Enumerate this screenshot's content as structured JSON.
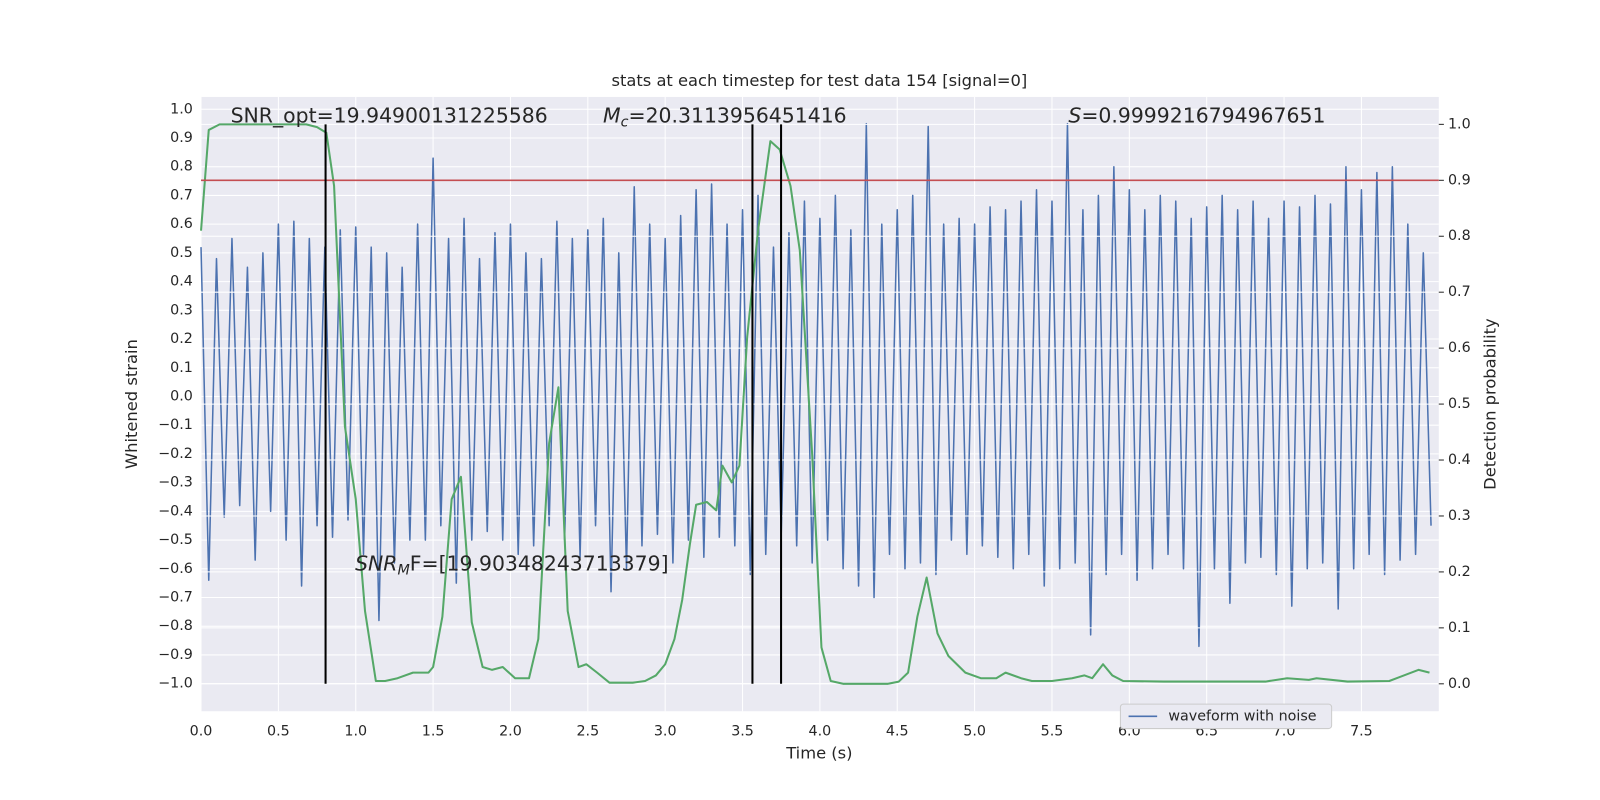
{
  "chart_data": {
    "type": "line",
    "title": "stats at each timestep for test data 154 [signal=0]",
    "xlabel": "Time (s)",
    "ylabel": "Whitened strain",
    "y2label": "Detection probability",
    "xlim": [
      0,
      8
    ],
    "ylim": [
      -1.096,
      1.043
    ],
    "y2lim": [
      -0.049,
      1.049
    ],
    "xticks": [
      {
        "value": 0,
        "label": "0.0"
      },
      0.5,
      {
        "value": 1,
        "label": "1.0"
      },
      1.5,
      {
        "value": 2,
        "label": "2.0"
      },
      2.5,
      {
        "value": 3,
        "label": "3.0"
      },
      3.5,
      {
        "value": 4,
        "label": "4.0"
      },
      4.5,
      {
        "value": 5,
        "label": "5.0"
      },
      5.5,
      {
        "value": 6,
        "label": "6.0"
      },
      6.5,
      {
        "value": 7,
        "label": "7.0"
      },
      7.5
    ],
    "yticks": [
      {
        "value": -1,
        "label": "−1.0"
      },
      {
        "value": -0.9,
        "label": "−0.9"
      },
      {
        "value": -0.8,
        "label": "−0.8"
      },
      {
        "value": -0.7,
        "label": "−0.7"
      },
      {
        "value": -0.6,
        "label": "−0.6"
      },
      {
        "value": -0.5,
        "label": "−0.5"
      },
      {
        "value": -0.4,
        "label": "−0.4"
      },
      {
        "value": -0.3,
        "label": "−0.3"
      },
      {
        "value": -0.2,
        "label": "−0.2"
      },
      {
        "value": -0.1,
        "label": "−0.1"
      },
      {
        "value": 0,
        "label": "0.0"
      },
      0.1,
      0.2,
      0.3,
      0.4,
      0.5,
      0.6,
      0.7,
      0.8,
      0.9,
      {
        "value": 1,
        "label": "1.0"
      }
    ],
    "y2ticks": [
      {
        "value": 0,
        "label": "0.0"
      },
      0.1,
      0.2,
      0.3,
      0.4,
      0.5,
      0.6,
      0.7,
      0.8,
      0.9,
      {
        "value": 1,
        "label": "1.0"
      }
    ],
    "grid": true,
    "legend": "lower right",
    "series": [
      {
        "name": "waveform with noise",
        "color": "#4c72b0",
        "x": [
          0,
          0.05,
          0.1,
          0.15,
          0.2,
          0.25,
          0.3,
          0.35,
          0.4,
          0.45,
          0.5,
          0.55,
          0.6,
          0.65,
          0.7,
          0.75,
          0.8,
          0.85,
          0.9,
          0.95,
          1,
          1.05,
          1.1,
          1.15,
          1.2,
          1.25,
          1.3,
          1.35,
          1.4,
          1.45,
          1.5,
          1.55,
          1.6,
          1.65,
          1.7,
          1.75,
          1.8,
          1.85,
          1.9,
          1.95,
          2,
          2.05,
          2.1,
          2.15,
          2.2,
          2.25,
          2.3,
          2.35,
          2.4,
          2.45,
          2.5,
          2.55,
          2.6,
          2.65,
          2.7,
          2.75,
          2.8,
          2.85,
          2.9,
          2.95,
          3,
          3.05,
          3.1,
          3.15,
          3.2,
          3.25,
          3.3,
          3.35,
          3.4,
          3.45,
          3.5,
          3.55,
          3.6,
          3.65,
          3.7,
          3.75,
          3.8,
          3.85,
          3.9,
          3.95,
          4,
          4.05,
          4.1,
          4.15,
          4.2,
          4.25,
          4.3,
          4.35,
          4.4,
          4.45,
          4.5,
          4.55,
          4.6,
          4.65,
          4.7,
          4.75,
          4.8,
          4.85,
          4.9,
          4.95,
          5,
          5.05,
          5.1,
          5.15,
          5.2,
          5.25,
          5.3,
          5.35,
          5.4,
          5.45,
          5.5,
          5.55,
          5.6,
          5.65,
          5.7,
          5.75,
          5.8,
          5.85,
          5.9,
          5.95,
          6,
          6.05,
          6.1,
          6.15,
          6.2,
          6.25,
          6.3,
          6.35,
          6.4,
          6.45,
          6.5,
          6.55,
          6.6,
          6.65,
          6.7,
          6.75,
          6.8,
          6.85,
          6.9,
          6.95,
          7,
          7.05,
          7.1,
          7.15,
          7.2,
          7.25,
          7.3,
          7.35,
          7.4,
          7.45,
          7.5,
          7.55,
          7.6,
          7.65,
          7.7,
          7.75,
          7.8,
          7.85,
          7.9,
          7.95
        ],
        "values": [
          0.52,
          -0.64,
          0.48,
          -0.42,
          0.55,
          -0.38,
          0.45,
          -0.57,
          0.5,
          -0.4,
          0.6,
          -0.5,
          0.61,
          -0.66,
          0.55,
          -0.45,
          0.52,
          -0.49,
          0.58,
          -0.43,
          0.59,
          -0.55,
          0.52,
          -0.78,
          0.5,
          -0.58,
          0.45,
          -0.5,
          0.6,
          -0.5,
          0.83,
          -0.45,
          0.55,
          -0.65,
          0.62,
          -0.5,
          0.48,
          -0.47,
          0.57,
          -0.5,
          0.6,
          -0.55,
          0.5,
          -0.52,
          0.48,
          -0.45,
          0.61,
          -0.5,
          0.55,
          -0.56,
          0.58,
          -0.45,
          0.62,
          -0.68,
          0.5,
          -0.6,
          0.73,
          -0.52,
          0.6,
          -0.48,
          0.55,
          -0.58,
          0.63,
          -0.5,
          0.72,
          -0.56,
          0.74,
          -0.49,
          0.6,
          -0.52,
          0.65,
          -0.62,
          0.7,
          -0.55,
          0.52,
          -0.48,
          0.57,
          -0.52,
          0.68,
          -0.58,
          0.62,
          -0.5,
          0.7,
          -0.6,
          0.58,
          -0.66,
          0.95,
          -0.7,
          0.6,
          -0.55,
          0.65,
          -0.6,
          0.7,
          -0.58,
          0.94,
          -0.62,
          0.6,
          -0.5,
          0.62,
          -0.55,
          0.6,
          -0.52,
          0.66,
          -0.56,
          0.65,
          -0.6,
          0.68,
          -0.55,
          0.72,
          -0.66,
          0.68,
          -0.6,
          0.95,
          -0.58,
          0.65,
          -0.83,
          0.7,
          -0.62,
          0.8,
          -0.55,
          0.72,
          -0.64,
          0.65,
          -0.6,
          0.7,
          -0.55,
          0.68,
          -0.6,
          0.62,
          -0.87,
          0.66,
          -0.6,
          0.7,
          -0.72,
          0.65,
          -0.58,
          0.68,
          -0.56,
          0.62,
          -0.62,
          0.68,
          -0.73,
          0.66,
          -0.6,
          0.7,
          -0.58,
          0.67,
          -0.74,
          0.8,
          -0.6,
          0.72,
          -0.55,
          0.78,
          -0.62,
          0.8,
          -0.57,
          0.6,
          -0.55,
          0.5,
          -0.45
        ]
      },
      {
        "color": "#55a868",
        "axis": "y2",
        "x": [
          0,
          0.05,
          0.12,
          0.28,
          0.68,
          0.75,
          0.81,
          0.86,
          0.93,
          1,
          1.06,
          1.13,
          1.19,
          1.27,
          1.37,
          1.47,
          1.5,
          1.56,
          1.62,
          1.68,
          1.75,
          1.82,
          1.88,
          1.95,
          2.03,
          2.12,
          2.18,
          2.25,
          2.31,
          2.37,
          2.44,
          2.49,
          2.56,
          2.64,
          2.79,
          2.87,
          2.94,
          3,
          3.06,
          3.11,
          3.16,
          3.2,
          3.27,
          3.33,
          3.37,
          3.43,
          3.48,
          3.53,
          3.6,
          3.68,
          3.74,
          3.81,
          3.87,
          3.95,
          4.01,
          4.07,
          4.15,
          4.44,
          4.51,
          4.57,
          4.63,
          4.69,
          4.76,
          4.83,
          4.94,
          5.04,
          5.14,
          5.2,
          5.3,
          5.37,
          5.5,
          5.63,
          5.71,
          5.76,
          5.83,
          5.89,
          5.96,
          6.22,
          6.55,
          6.88,
          7.02,
          7.16,
          7.21,
          7.41,
          7.68,
          7.87,
          7.94
        ],
        "values": [
          0.81,
          0.99,
          1,
          1,
          1,
          0.995,
          0.985,
          0.89,
          0.46,
          0.33,
          0.13,
          0.005,
          0.005,
          0.01,
          0.02,
          0.02,
          0.03,
          0.12,
          0.33,
          0.37,
          0.11,
          0.03,
          0.025,
          0.03,
          0.01,
          0.01,
          0.08,
          0.43,
          0.53,
          0.13,
          0.03,
          0.035,
          0.02,
          0.002,
          0.002,
          0.005,
          0.015,
          0.035,
          0.08,
          0.15,
          0.25,
          0.32,
          0.325,
          0.31,
          0.39,
          0.36,
          0.39,
          0.62,
          0.81,
          0.97,
          0.955,
          0.89,
          0.775,
          0.41,
          0.065,
          0.005,
          0,
          0,
          0.004,
          0.02,
          0.12,
          0.19,
          0.09,
          0.05,
          0.02,
          0.01,
          0.01,
          0.02,
          0.01,
          0.005,
          0.005,
          0.01,
          0.015,
          0.01,
          0.035,
          0.015,
          0.005,
          0.004,
          0.004,
          0.004,
          0.01,
          0.007,
          0.01,
          0.004,
          0.005,
          0.025,
          0.02
        ]
      }
    ],
    "hlines": [
      {
        "y": 0.9,
        "axis": "y2",
        "color": "#c44e52"
      }
    ],
    "vlines": {
      "x": [
        0.805,
        3.564,
        3.749
      ],
      "ymin": 0,
      "ymax": 1,
      "axis": "y2",
      "color": "#000000"
    },
    "annotations": [
      {
        "text": "SNR_opt=19.94900131225586"
      },
      {
        "symbol": "M",
        "subscript": "c",
        "text": "=20.3113956451416"
      },
      {
        "symbol": "S",
        "text": "=0.9999216794967651"
      },
      {
        "symbol": "SNR",
        "subscript": "M",
        "text": "F=[19.90348243713379]"
      }
    ]
  }
}
